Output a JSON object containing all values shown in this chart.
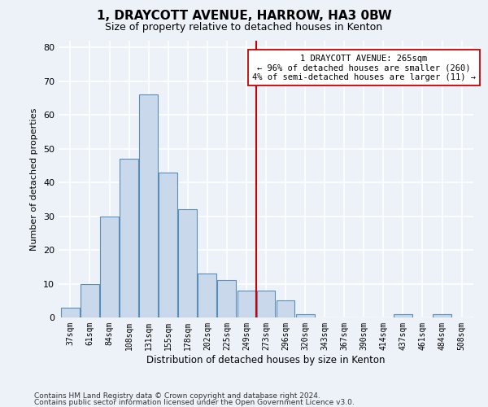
{
  "title1": "1, DRAYCOTT AVENUE, HARROW, HA3 0BW",
  "title2": "Size of property relative to detached houses in Kenton",
  "xlabel": "Distribution of detached houses by size in Kenton",
  "ylabel": "Number of detached properties",
  "bar_labels": [
    "37sqm",
    "61sqm",
    "84sqm",
    "108sqm",
    "131sqm",
    "155sqm",
    "178sqm",
    "202sqm",
    "225sqm",
    "249sqm",
    "273sqm",
    "296sqm",
    "320sqm",
    "343sqm",
    "367sqm",
    "390sqm",
    "414sqm",
    "437sqm",
    "461sqm",
    "484sqm",
    "508sqm"
  ],
  "bar_heights": [
    3,
    10,
    30,
    47,
    66,
    43,
    32,
    13,
    11,
    8,
    8,
    5,
    1,
    0,
    0,
    0,
    0,
    1,
    0,
    1,
    0
  ],
  "bar_color": "#c9d9eb",
  "bar_edge_color": "#5b8db8",
  "vline_pos": 9.5,
  "vline_color": "#cc0000",
  "annotation_text": "1 DRAYCOTT AVENUE: 265sqm\n← 96% of detached houses are smaller (260)\n4% of semi-detached houses are larger (11) →",
  "annotation_box_facecolor": "#ffffff",
  "annotation_box_edgecolor": "#cc0000",
  "ylim_max": 82,
  "yticks": [
    0,
    10,
    20,
    30,
    40,
    50,
    60,
    70,
    80
  ],
  "footer1": "Contains HM Land Registry data © Crown copyright and database right 2024.",
  "footer2": "Contains public sector information licensed under the Open Government Licence v3.0.",
  "bg_color": "#edf2f9",
  "grid_color": "#ffffff",
  "figsize": [
    6.0,
    5.0
  ],
  "dpi": 100
}
